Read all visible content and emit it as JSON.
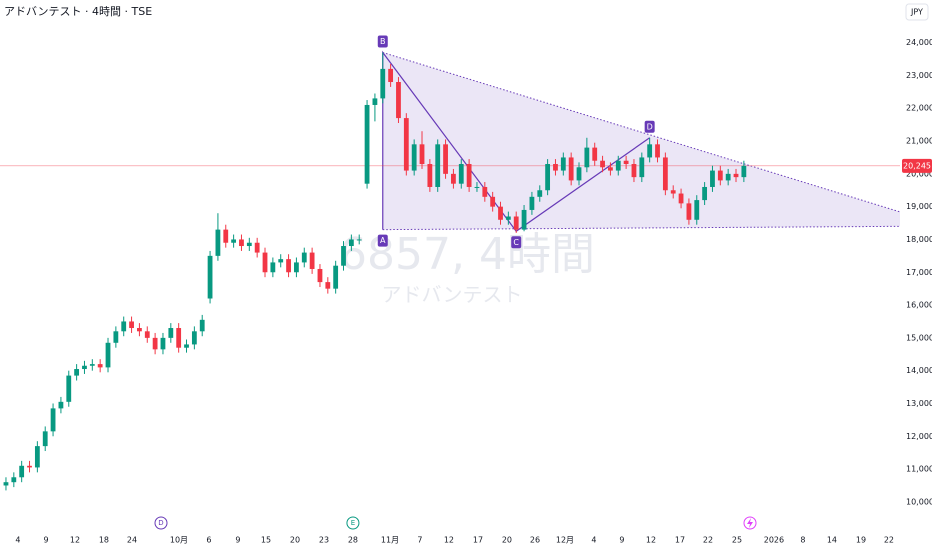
{
  "chart_data": {
    "type": "candlestick",
    "title": "アドバンテスト · 4時間 · TSE",
    "currency": "JPY",
    "watermark": {
      "symbol": "6857, 4時間",
      "name": "アドバンテスト"
    },
    "up_color": "#089981",
    "down_color": "#f23645",
    "grid": false,
    "xlim": [
      -0.76,
      113.89
    ],
    "ylim": [
      9600,
      25300
    ],
    "yticks": [
      {
        "value": 10000,
        "label": "10,000"
      },
      {
        "value": 11000,
        "label": "11,000"
      },
      {
        "value": 12000,
        "label": "12,000"
      },
      {
        "value": 13000,
        "label": "13,000"
      },
      {
        "value": 14000,
        "label": "14,000"
      },
      {
        "value": 15000,
        "label": "15,000"
      },
      {
        "value": 16000,
        "label": "16,000"
      },
      {
        "value": 17000,
        "label": "17,000"
      },
      {
        "value": 18000,
        "label": "18,000"
      },
      {
        "value": 19000,
        "label": "19,000"
      },
      {
        "value": 20000,
        "label": "20,000"
      },
      {
        "value": 21000,
        "label": "21,000"
      },
      {
        "value": 22000,
        "label": "22,000"
      },
      {
        "value": 23000,
        "label": "23,000"
      },
      {
        "value": 24000,
        "label": "24,000"
      }
    ],
    "xticks": [
      {
        "value": 1.53,
        "label": "4"
      },
      {
        "value": 5.1,
        "label": "9"
      },
      {
        "value": 8.79,
        "label": "12"
      },
      {
        "value": 12.48,
        "label": "18"
      },
      {
        "value": 16.05,
        "label": "24"
      },
      {
        "value": 22.04,
        "label": "10月"
      },
      {
        "value": 25.86,
        "label": "6"
      },
      {
        "value": 29.55,
        "label": "9"
      },
      {
        "value": 33.12,
        "label": "15"
      },
      {
        "value": 36.82,
        "label": "20"
      },
      {
        "value": 40.51,
        "label": "23"
      },
      {
        "value": 44.2,
        "label": "28"
      },
      {
        "value": 48.92,
        "label": "11月"
      },
      {
        "value": 52.74,
        "label": "7"
      },
      {
        "value": 56.43,
        "label": "12"
      },
      {
        "value": 60.13,
        "label": "17"
      },
      {
        "value": 63.82,
        "label": "20"
      },
      {
        "value": 67.39,
        "label": "26"
      },
      {
        "value": 71.21,
        "label": "12月"
      },
      {
        "value": 74.9,
        "label": "4"
      },
      {
        "value": 78.47,
        "label": "9"
      },
      {
        "value": 82.17,
        "label": "12"
      },
      {
        "value": 85.86,
        "label": "17"
      },
      {
        "value": 89.43,
        "label": "22"
      },
      {
        "value": 93.12,
        "label": "25"
      },
      {
        "value": 97.83,
        "label": "2026"
      },
      {
        "value": 101.53,
        "label": "8"
      },
      {
        "value": 105.22,
        "label": "14"
      },
      {
        "value": 108.92,
        "label": "19"
      },
      {
        "value": 112.48,
        "label": "22"
      }
    ],
    "x": [
      0,
      1,
      2,
      3,
      4,
      5,
      6,
      7,
      8,
      9,
      10,
      11,
      12,
      13,
      14,
      15,
      16,
      17,
      18,
      19,
      20,
      21,
      22,
      23,
      24,
      25,
      26,
      27,
      28,
      29,
      30,
      31,
      32,
      33,
      34,
      35,
      36,
      37,
      38,
      39,
      40,
      41,
      42,
      43,
      44,
      45,
      46,
      47,
      48,
      49,
      50,
      51,
      52,
      53,
      54,
      55,
      56,
      57,
      58,
      59,
      60,
      61,
      62,
      63,
      64,
      65,
      66,
      67,
      68,
      69,
      70,
      71,
      72,
      73,
      74,
      75,
      76,
      77,
      78,
      79,
      80,
      81,
      82,
      83,
      84,
      85,
      86,
      87,
      88,
      89,
      90,
      91,
      92,
      93,
      94
    ],
    "open": [
      10500,
      10600,
      10750,
      11100,
      11050,
      11700,
      12150,
      12850,
      13050,
      13850,
      14050,
      14150,
      14200,
      14100,
      14850,
      15200,
      15500,
      15300,
      15200,
      15000,
      14650,
      15000,
      15300,
      14700,
      14800,
      15200,
      16200,
      17500,
      18300,
      17900,
      18000,
      17800,
      17900,
      17600,
      17000,
      17300,
      17400,
      17000,
      17300,
      17600,
      17100,
      16700,
      16500,
      17200,
      17800,
      18000,
      19700,
      22100,
      22300,
      23200,
      22800,
      21700,
      20100,
      20900,
      20300,
      19600,
      20900,
      20000,
      19700,
      20300,
      19600,
      19600,
      19300,
      19000,
      18600,
      18700,
      18300,
      18900,
      19300,
      19500,
      20300,
      20100,
      20500,
      19800,
      20200,
      20800,
      20400,
      20200,
      20100,
      20400,
      20300,
      19900,
      20500,
      20900,
      20500,
      19500,
      19400,
      19100,
      18600,
      19200,
      19600,
      20100,
      19800,
      20000,
      19900
    ],
    "high": [
      10750,
      10900,
      11250,
      11250,
      11850,
      12300,
      13000,
      13200,
      14000,
      14200,
      14300,
      14350,
      14350,
      15000,
      15350,
      15650,
      15650,
      15450,
      15350,
      15150,
      15150,
      15450,
      15450,
      14950,
      15350,
      15700,
      17650,
      18800,
      18450,
      18150,
      18150,
      18050,
      18050,
      17750,
      17450,
      17550,
      17550,
      17450,
      17750,
      17750,
      17250,
      16850,
      17350,
      17950,
      18150,
      18150,
      22250,
      22450,
      23700,
      23350,
      22950,
      21850,
      21050,
      21300,
      20450,
      21050,
      21050,
      20150,
      20450,
      20450,
      19750,
      19750,
      19450,
      19150,
      18850,
      18850,
      19050,
      19450,
      19650,
      20450,
      20450,
      20650,
      20650,
      20350,
      21100,
      20950,
      20550,
      20350,
      20550,
      20550,
      20450,
      20650,
      21100,
      21050,
      20650,
      19650,
      19550,
      19250,
      19350,
      19750,
      20250,
      20250,
      20150,
      20150,
      20400
    ],
    "low": [
      10350,
      10450,
      10600,
      10900,
      10900,
      11550,
      12000,
      12700,
      12900,
      13700,
      13900,
      14000,
      13950,
      13950,
      14700,
      15050,
      15150,
      15050,
      14850,
      14500,
      14500,
      14850,
      14550,
      14550,
      14650,
      15050,
      16050,
      17350,
      17750,
      17750,
      17650,
      17650,
      17450,
      16850,
      16850,
      17150,
      16850,
      16850,
      17150,
      16950,
      16550,
      16350,
      16350,
      17050,
      17650,
      17850,
      19550,
      21600,
      22150,
      22650,
      21550,
      19950,
      19950,
      20150,
      19450,
      19450,
      19850,
      19550,
      19550,
      19450,
      19450,
      19150,
      18850,
      18450,
      18450,
      18200,
      18250,
      18750,
      19150,
      19350,
      19950,
      19950,
      19650,
      19650,
      20050,
      20250,
      20050,
      19950,
      19950,
      20150,
      19750,
      19750,
      20350,
      20350,
      19350,
      19250,
      18950,
      18450,
      18450,
      19050,
      19450,
      19650,
      19650,
      19750,
      19750
    ],
    "close": [
      10600,
      10750,
      11100,
      11050,
      11700,
      12150,
      12850,
      13050,
      13850,
      14050,
      14150,
      14200,
      14100,
      14850,
      15200,
      15500,
      15300,
      15200,
      15000,
      14650,
      15000,
      15300,
      14700,
      14800,
      15200,
      15550,
      17500,
      18300,
      17900,
      18000,
      17800,
      17900,
      17600,
      17000,
      17300,
      17400,
      17000,
      17300,
      17600,
      17100,
      16700,
      16500,
      17200,
      17800,
      18000,
      18000,
      22100,
      22300,
      23200,
      22800,
      21700,
      20100,
      20900,
      20300,
      19600,
      20900,
      20000,
      19700,
      20300,
      19600,
      19600,
      19300,
      19000,
      18600,
      18700,
      18300,
      18900,
      19300,
      19500,
      20300,
      20100,
      20500,
      19800,
      20200,
      20800,
      20400,
      20200,
      20100,
      20400,
      20300,
      19900,
      20500,
      20900,
      20500,
      19500,
      19400,
      19100,
      18600,
      19200,
      19600,
      20100,
      19800,
      20000,
      19900,
      20245
    ],
    "pattern": {
      "color": "#673ab7",
      "points": [
        {
          "label": "A",
          "x": 48,
          "y": 18300
        },
        {
          "label": "B",
          "x": 48,
          "y": 23700
        },
        {
          "label": "C",
          "x": 65,
          "y": 18250
        },
        {
          "label": "D",
          "x": 82,
          "y": 21100
        }
      ],
      "upper": [
        {
          "x": 48,
          "y": 23700
        },
        {
          "x": 113.89,
          "y": 18840
        }
      ],
      "lower": [
        {
          "x": 48,
          "y": 18300
        },
        {
          "x": 113.89,
          "y": 18400
        }
      ]
    },
    "last_price": {
      "value": 20245,
      "label": "20,245"
    },
    "events": [
      {
        "x": 19.75,
        "label": "D",
        "color": "#673ab7"
      },
      {
        "x": 44.2,
        "label": "E",
        "color": "#089981"
      }
    ]
  }
}
